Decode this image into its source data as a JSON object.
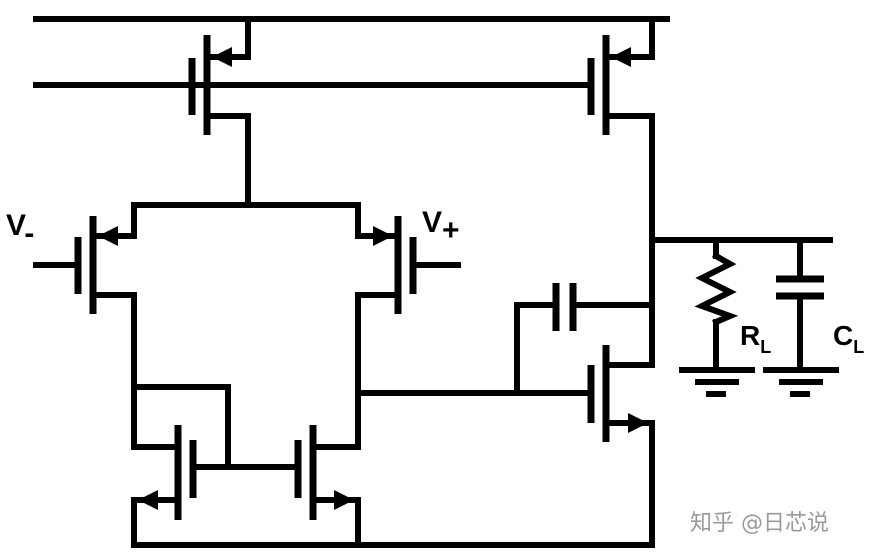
{
  "labels": {
    "v_minus": {
      "main": "V",
      "sub": "-"
    },
    "v_plus": {
      "main": "V",
      "sub": "+"
    },
    "rl": {
      "main": "R",
      "sub": "L"
    },
    "cl": {
      "main": "C",
      "sub": "L"
    }
  },
  "watermark": "知乎 @日芯说",
  "colors": {
    "wire": "#000000",
    "watermark": "#9a9a9a",
    "background": "#ffffff"
  }
}
